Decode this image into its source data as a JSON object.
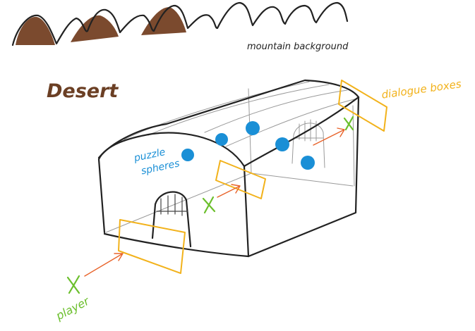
{
  "labels": {
    "mountain": "mountain background",
    "desert": "Desert",
    "puzzle_line1": "puzzle",
    "puzzle_line2": "spheres",
    "dialog": "dialogue boxes",
    "player": "player"
  },
  "colors": {
    "ink": "#222222",
    "mountain_fill": "#7b4a2e",
    "desert_text": "#6b3f24",
    "sphere": "#1a8fd6",
    "puzzle_text": "#1a8fd6",
    "dialog_box": "#f2b21b",
    "arrow": "#e8632a",
    "player": "#6bbf2c"
  }
}
